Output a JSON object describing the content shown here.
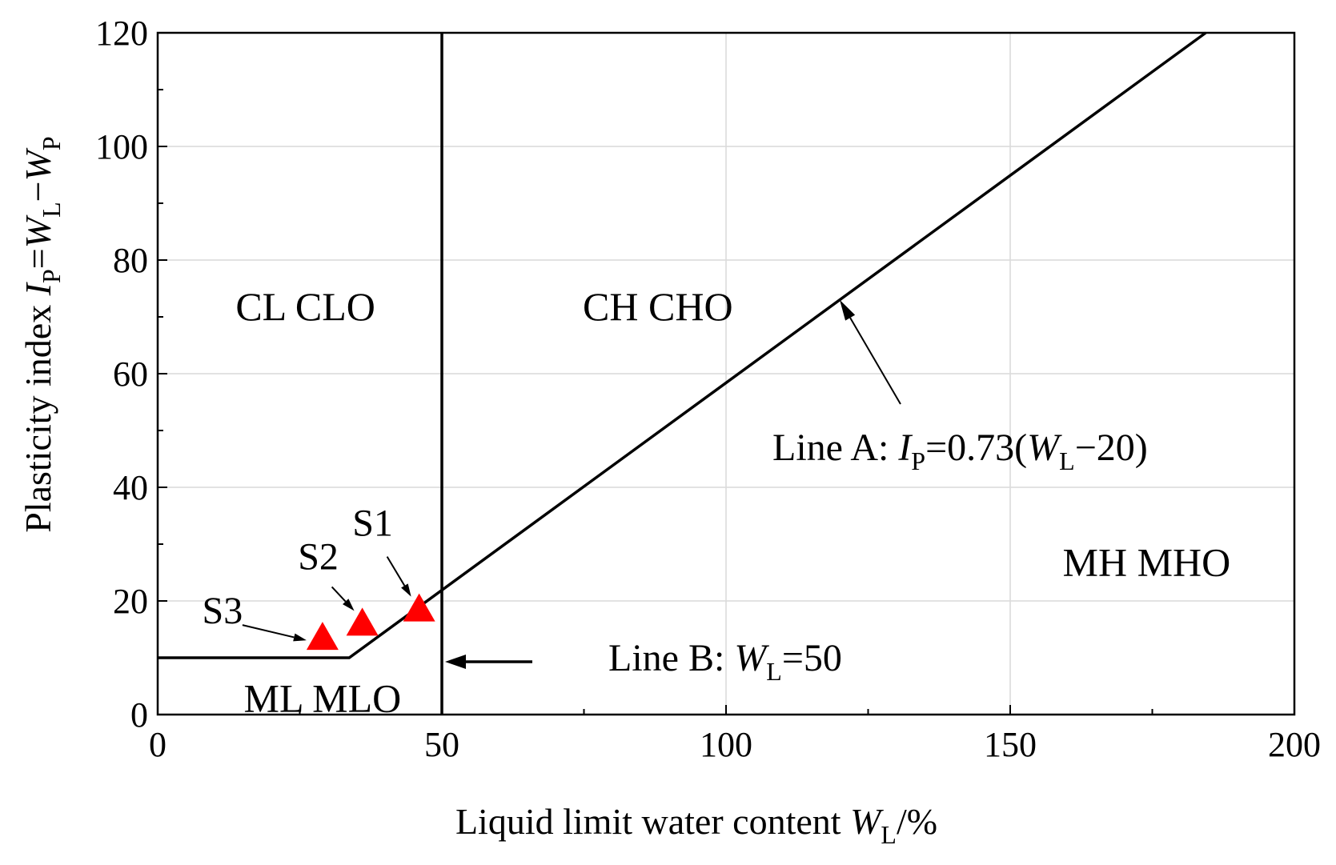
{
  "chart_data": {
    "type": "line",
    "xlabel": {
      "main": "Liquid limit water content ",
      "var": "W",
      "sub": "L",
      "post": "/%"
    },
    "ylabel": {
      "pre": "Plasticity index ",
      "v1": "I",
      "s1": "P",
      "eq": "=",
      "v2": "W",
      "s2": "L",
      "minus": "−",
      "v3": "W",
      "s3": "P"
    },
    "xlim": [
      0,
      200
    ],
    "ylim": [
      0,
      120
    ],
    "x_ticks": [
      0,
      50,
      100,
      150,
      200
    ],
    "x_minor_ticks": [
      25,
      75,
      125,
      175
    ],
    "y_ticks": [
      0,
      20,
      40,
      60,
      80,
      100,
      120
    ],
    "y_minor_ticks": [
      10,
      30,
      50,
      70,
      90,
      110
    ],
    "grid": true,
    "series": [
      {
        "name": "Line A",
        "x": [
          0,
          33.7,
          184.4
        ],
        "y": [
          10,
          10,
          120
        ]
      },
      {
        "name": "Line B",
        "x": [
          50,
          50
        ],
        "y": [
          0,
          120
        ]
      }
    ],
    "points": [
      {
        "label": "S1",
        "x": 46,
        "y": 18.5,
        "color": "#ff0000"
      },
      {
        "label": "S2",
        "x": 36,
        "y": 16,
        "color": "#ff0000"
      },
      {
        "label": "S3",
        "x": 29,
        "y": 13.5,
        "color": "#ff0000"
      }
    ],
    "regions": [
      {
        "text": "CL  CLO",
        "x": 26,
        "y": 72
      },
      {
        "text": "CH  CHO",
        "x": 88,
        "y": 72
      },
      {
        "text": "MH  MHO",
        "x": 174,
        "y": 27
      },
      {
        "text": "ML  MLO",
        "x": 29,
        "y": 3
      }
    ],
    "annotations": {
      "lineA": {
        "prefix": "Line A: ",
        "v1": "I",
        "s1": "P",
        "mid": "=0.73(",
        "v2": "W",
        "s2": "L",
        "tail": "−20)"
      },
      "lineB": {
        "prefix": "Line B: ",
        "v1": "W",
        "s1": "L",
        "tail": "=50"
      }
    }
  }
}
